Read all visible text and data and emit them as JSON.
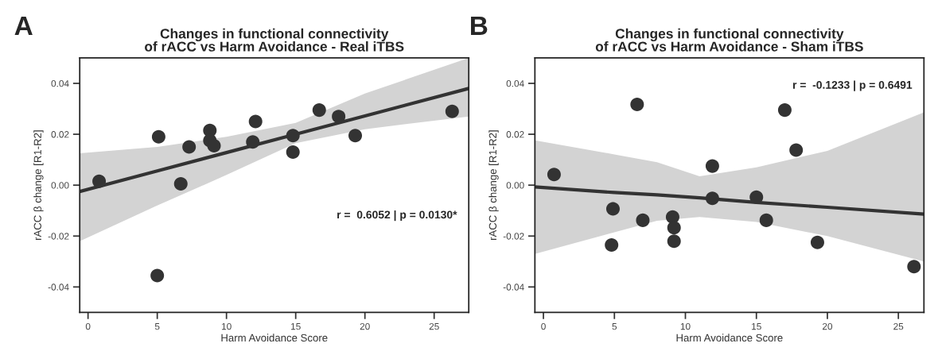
{
  "chart_data": [
    {
      "type": "scatter",
      "title": "Changes in functional connectivity\nof rACC vs Harm Avoidance - Real iTBS",
      "xlabel": "Harm Avoidance Score",
      "ylabel": "rACC β change [R1-R2]",
      "annotations": [
        "A",
        "r =  0.6052 | p = 0.0130*"
      ],
      "xlim": [
        -0.6,
        27.5
      ],
      "ylim": [
        -0.05,
        0.05
      ],
      "xticks": [
        0,
        5,
        10,
        15,
        20,
        25
      ],
      "yticks": [
        {
          "value": -0.04,
          "label": "-0.04"
        },
        {
          "value": -0.02,
          "label": "-0.02"
        },
        {
          "value": 0,
          "label": "0.00"
        },
        {
          "value": 0.02,
          "label": "0.02"
        },
        {
          "value": 0.04,
          "label": "0.04"
        }
      ],
      "grid": false,
      "legend": false,
      "series": [
        {
          "marker": "circle",
          "color": "#333333",
          "x": [
            0.8,
            5.1,
            5.0,
            6.7,
            7.3,
            8.8,
            8.8,
            9.1,
            11.9,
            12.1,
            14.8,
            14.8,
            16.7,
            18.1,
            19.3,
            26.3
          ],
          "values": [
            0.0015,
            0.019,
            -0.0355,
            0.0005,
            0.015,
            0.0215,
            0.0175,
            0.0155,
            0.017,
            0.025,
            0.0195,
            0.013,
            0.0295,
            0.027,
            0.0195,
            0.029
          ]
        },
        {
          "type": "line",
          "color": "#333333",
          "line_style": "solid",
          "x": [
            -0.6,
            5,
            10,
            15,
            20,
            27.5
          ],
          "values": [
            -0.0025,
            0.0056,
            0.0128,
            0.02,
            0.0272,
            0.038
          ],
          "lower": [
            -0.022,
            -0.008,
            0.004,
            0.0165,
            0.022,
            0.027
          ],
          "upper": [
            0.0125,
            0.015,
            0.019,
            0.0245,
            0.036,
            0.05
          ]
        }
      ]
    },
    {
      "type": "scatter",
      "title": "Changes in functional connectivity\nof rACC vs Harm Avoidance - Sham iTBS",
      "xlabel": "Harm Avoidance Score",
      "ylabel": "rACC β change [R1-R2]",
      "annotations": [
        "B",
        "r =  -0.1233 | p = 0.6491"
      ],
      "xlim": [
        -0.6,
        26.8
      ],
      "ylim": [
        -0.05,
        0.05
      ],
      "xticks": [
        0,
        5,
        10,
        15,
        20,
        25
      ],
      "yticks": [
        {
          "value": -0.04,
          "label": "-0.04"
        },
        {
          "value": -0.02,
          "label": "-0.02"
        },
        {
          "value": 0,
          "label": "0.00"
        },
        {
          "value": 0.02,
          "label": "0.02"
        },
        {
          "value": 0.04,
          "label": "0.04"
        }
      ],
      "grid": false,
      "legend": false,
      "series": [
        {
          "marker": "circle",
          "color": "#333333",
          "x": [
            0.75,
            4.9,
            4.8,
            6.6,
            7.0,
            9.1,
            9.2,
            9.2,
            11.9,
            11.9,
            15.0,
            15.7,
            17.0,
            17.8,
            19.3,
            26.1
          ],
          "values": [
            0.0042,
            -0.0093,
            -0.0235,
            0.0317,
            -0.0138,
            -0.0125,
            -0.0167,
            -0.022,
            0.0075,
            -0.0052,
            -0.0047,
            -0.0138,
            0.0295,
            0.0138,
            -0.0225,
            -0.032
          ]
        },
        {
          "type": "line",
          "color": "#333333",
          "line_style": "solid",
          "x": [
            -0.6,
            5,
            8,
            11,
            15,
            20,
            26.8
          ],
          "values": [
            -0.0007,
            -0.0029,
            -0.0038,
            -0.005,
            -0.0068,
            -0.0087,
            -0.0114
          ],
          "lower": [
            -0.027,
            -0.0185,
            -0.014,
            -0.0125,
            -0.0145,
            -0.02,
            -0.03
          ],
          "upper": [
            0.0176,
            0.0121,
            0.009,
            0.0035,
            0.007,
            0.0135,
            0.0286
          ]
        }
      ]
    }
  ]
}
